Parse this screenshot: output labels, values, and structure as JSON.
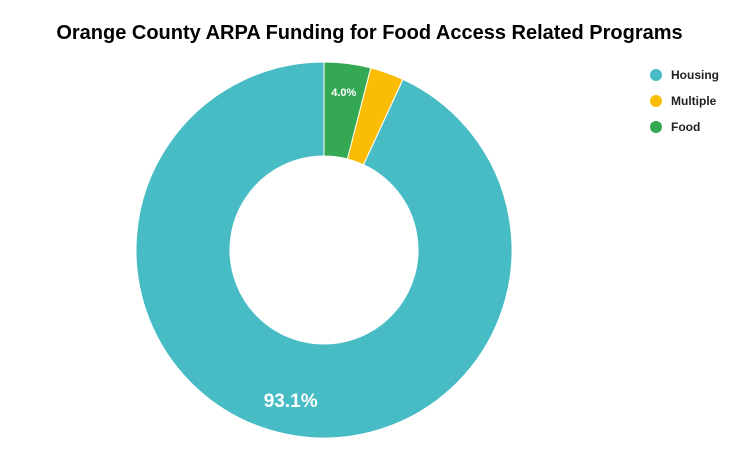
{
  "chart_data": {
    "type": "pie",
    "variant": "donut",
    "title": "Orange County ARPA Funding for Food Access Related Programs",
    "categories": [
      "Housing",
      "Multiple",
      "Food"
    ],
    "values": [
      93.1,
      2.9,
      4.0
    ],
    "unit": "%",
    "data_labels": [
      "93.1%",
      "",
      "4.0%"
    ],
    "colors": [
      "#47bcc5",
      "#fbbc05",
      "#34a853"
    ],
    "legend_position": "top-right",
    "start_angle": "12 o'clock",
    "direction": "counterclockwise"
  }
}
